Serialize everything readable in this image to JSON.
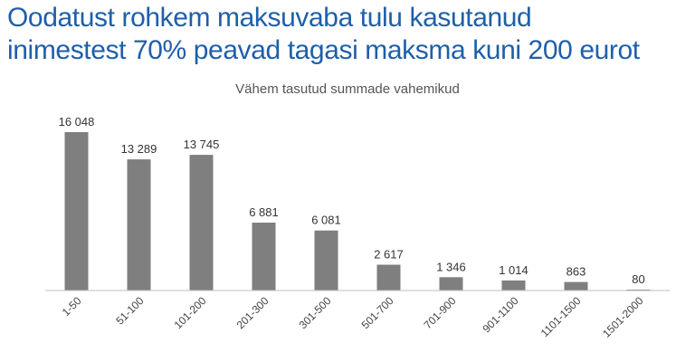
{
  "header": {
    "title_line1": "Oodatust rohkem maksuvaba tulu kasutanud",
    "title_line2": "inimestest 70% peavad tagasi maksma kuni 200 eurot"
  },
  "colors": {
    "title": "#1f5fa8",
    "bar": "#7f7f7f",
    "axis": "#bfbfbf"
  },
  "chart_data": {
    "type": "bar",
    "title": "Vähem tasutud summade vahemikud",
    "xlabel": "",
    "ylabel": "",
    "categories": [
      "1-50",
      "51-100",
      "101-200",
      "201-300",
      "301-500",
      "501-700",
      "701-900",
      "901-1100",
      "1101-1500",
      "1501-2000"
    ],
    "values": [
      16048,
      13289,
      13745,
      6881,
      6081,
      2617,
      1346,
      1014,
      863,
      80
    ],
    "value_labels": [
      "16 048",
      "13 289",
      "13 745",
      "6 881",
      "6 081",
      "2 617",
      "1 346",
      "1 014",
      "863",
      "80"
    ],
    "ylim": [
      0,
      16048
    ],
    "grid": false,
    "legend": "none"
  }
}
